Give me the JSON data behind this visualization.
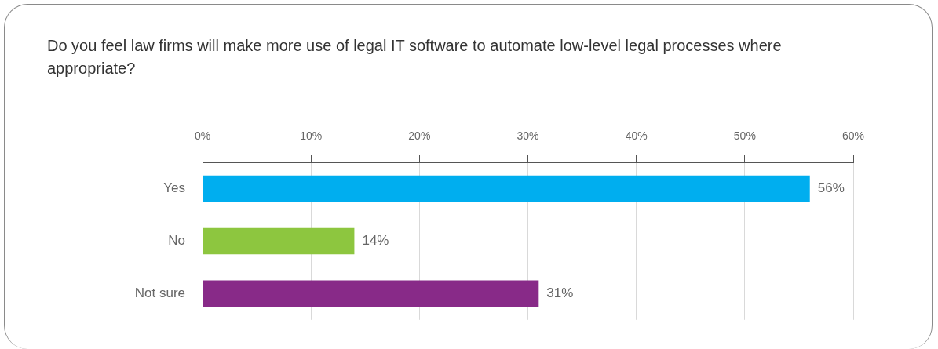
{
  "chart_data": {
    "type": "bar",
    "orientation": "horizontal",
    "title": "Do you feel law firms will make more use of legal IT software to automate low-level legal processes where appropriate?",
    "categories": [
      "Yes",
      "No",
      "Not sure"
    ],
    "values": [
      56,
      14,
      31
    ],
    "colors": [
      "#00aeef",
      "#8dc63f",
      "#882a88"
    ],
    "value_labels": [
      "56%",
      "14%",
      "31%"
    ],
    "xlim": [
      0,
      60
    ],
    "xticks": [
      {
        "value": 0,
        "label": "0%"
      },
      {
        "value": 10,
        "label": "10%"
      },
      {
        "value": 20,
        "label": "20%"
      },
      {
        "value": 30,
        "label": "30%"
      },
      {
        "value": 40,
        "label": "40%"
      },
      {
        "value": 50,
        "label": "50%"
      },
      {
        "value": 60,
        "label": "60%"
      }
    ],
    "grid": "x"
  }
}
